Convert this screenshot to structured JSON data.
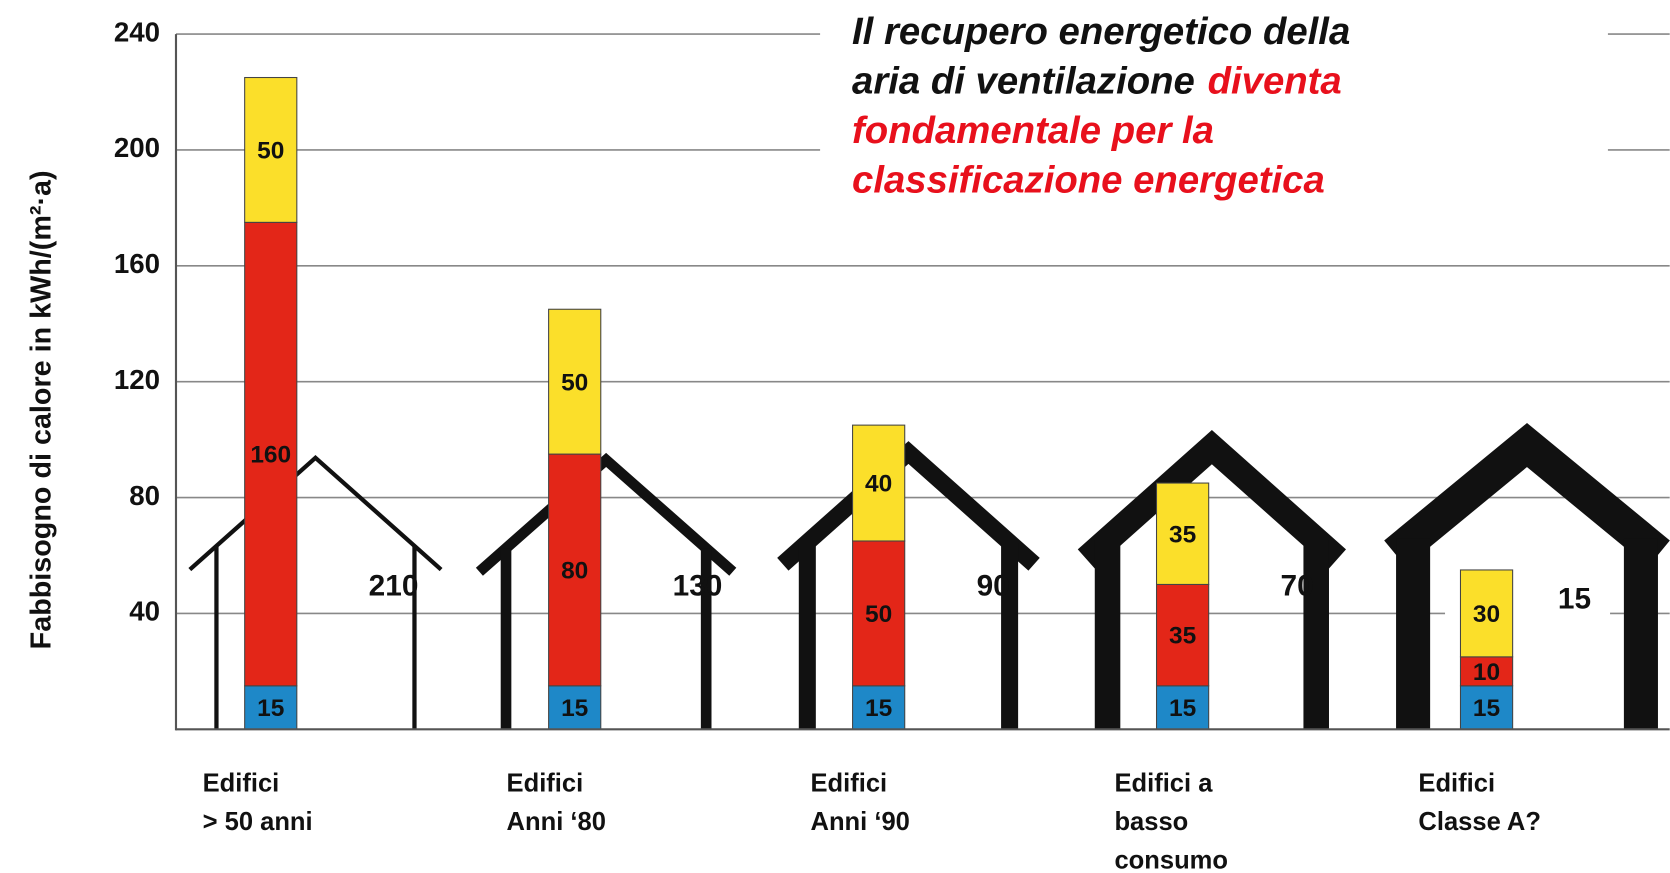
{
  "chart_data": {
    "type": "stacked_bar",
    "title_lines": [
      [
        {
          "text": "Il recupero energetico della",
          "color": "#111111"
        }
      ],
      [
        {
          "text": "aria di ventilazione",
          "color": "#111111"
        },
        {
          "text": "diventa",
          "color": "#e8101c"
        }
      ],
      [
        {
          "text": "fondamentale per la",
          "color": "#e8101c"
        }
      ],
      [
        {
          "text": "classificazione energetica",
          "color": "#e8101c"
        }
      ]
    ],
    "y_label": "Fabbisogno di calore in kWh/(m²·a)",
    "categories": [
      [
        "Edifici",
        "> 50 anni"
      ],
      [
        "Edifici",
        "Anni ‘80"
      ],
      [
        "Edifici",
        "Anni ‘90"
      ],
      [
        "Edifici a",
        "basso",
        "consumo"
      ],
      [
        "Edifici",
        "Classe A?"
      ]
    ],
    "series": [
      {
        "color": "#1e88c8",
        "values": [
          15,
          15,
          15,
          15,
          15
        ]
      },
      {
        "color": "#e32618",
        "values": [
          160,
          80,
          50,
          35,
          10
        ]
      },
      {
        "color": "#fbdf2a",
        "values": [
          50,
          50,
          40,
          35,
          30
        ]
      }
    ],
    "house_labels": [
      "210",
      "130",
      "90",
      "70",
      "15"
    ],
    "house_label_colors": [
      "#111111",
      "#111111",
      "#111111",
      "#111111",
      "#e8101c"
    ],
    "ylim": [
      0,
      240
    ],
    "yticks": [
      40,
      80,
      120,
      160,
      200,
      240
    ],
    "grid": true
  }
}
